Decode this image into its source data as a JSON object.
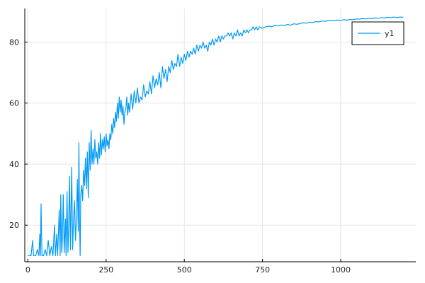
{
  "chart_data": {
    "type": "line",
    "title": "",
    "xlabel": "",
    "ylabel": "",
    "xlim": [
      -10,
      1240
    ],
    "ylim": [
      8,
      91
    ],
    "xticks": [
      0,
      250,
      500,
      750,
      1000
    ],
    "yticks": [
      20,
      40,
      60,
      80
    ],
    "grid": true,
    "legend_position": "top-right",
    "series": [
      {
        "name": "y1",
        "color": "#009af9",
        "points": [
          [
            0,
            10
          ],
          [
            10,
            10
          ],
          [
            15,
            15
          ],
          [
            18,
            10
          ],
          [
            25,
            10
          ],
          [
            30,
            12
          ],
          [
            35,
            10
          ],
          [
            38,
            17
          ],
          [
            40,
            10
          ],
          [
            42,
            27
          ],
          [
            45,
            10
          ],
          [
            50,
            10
          ],
          [
            55,
            12
          ],
          [
            60,
            10
          ],
          [
            65,
            15
          ],
          [
            70,
            10
          ],
          [
            75,
            13
          ],
          [
            80,
            10
          ],
          [
            85,
            20
          ],
          [
            88,
            10
          ],
          [
            92,
            17
          ],
          [
            95,
            10
          ],
          [
            100,
            25
          ],
          [
            103,
            10
          ],
          [
            105,
            30
          ],
          [
            108,
            11
          ],
          [
            110,
            15
          ],
          [
            113,
            30
          ],
          [
            116,
            11
          ],
          [
            120,
            22
          ],
          [
            122,
            10
          ],
          [
            125,
            31
          ],
          [
            128,
            11
          ],
          [
            130,
            18
          ],
          [
            133,
            36
          ],
          [
            136,
            12
          ],
          [
            140,
            39
          ],
          [
            143,
            12
          ],
          [
            146,
            22
          ],
          [
            149,
            28
          ],
          [
            152,
            15
          ],
          [
            155,
            22
          ],
          [
            158,
            35
          ],
          [
            161,
            18
          ],
          [
            163,
            47
          ],
          [
            165,
            22
          ],
          [
            167,
            10
          ],
          [
            169,
            30
          ],
          [
            172,
            33
          ],
          [
            175,
            28
          ],
          [
            178,
            38
          ],
          [
            181,
            33
          ],
          [
            184,
            42
          ],
          [
            187,
            32
          ],
          [
            190,
            44
          ],
          [
            193,
            29
          ],
          [
            196,
            47
          ],
          [
            199,
            38
          ],
          [
            202,
            51
          ],
          [
            205,
            40
          ],
          [
            208,
            45
          ],
          [
            211,
            40
          ],
          [
            214,
            48
          ],
          [
            217,
            42
          ],
          [
            220,
            44
          ],
          [
            223,
            40
          ],
          [
            226,
            47
          ],
          [
            229,
            42
          ],
          [
            232,
            50
          ],
          [
            235,
            43
          ],
          [
            238,
            48
          ],
          [
            241,
            45
          ],
          [
            244,
            49
          ],
          [
            247,
            44
          ],
          [
            250,
            50
          ],
          [
            253,
            46
          ],
          [
            256,
            48
          ],
          [
            259,
            45
          ],
          [
            262,
            50
          ],
          [
            265,
            48
          ],
          [
            268,
            53
          ],
          [
            271,
            50
          ],
          [
            274,
            55
          ],
          [
            277,
            52
          ],
          [
            280,
            57
          ],
          [
            283,
            54
          ],
          [
            286,
            60
          ],
          [
            289,
            55
          ],
          [
            292,
            62
          ],
          [
            295,
            57
          ],
          [
            298,
            61
          ],
          [
            301,
            56
          ],
          [
            304,
            59
          ],
          [
            307,
            53
          ],
          [
            310,
            57
          ],
          [
            313,
            58
          ],
          [
            316,
            62
          ],
          [
            319,
            56
          ],
          [
            322,
            60
          ],
          [
            325,
            57
          ],
          [
            330,
            63
          ],
          [
            335,
            58
          ],
          [
            340,
            64
          ],
          [
            345,
            60
          ],
          [
            350,
            65
          ],
          [
            355,
            60
          ],
          [
            360,
            62
          ],
          [
            365,
            61
          ],
          [
            370,
            66
          ],
          [
            375,
            62
          ],
          [
            380,
            64
          ],
          [
            385,
            63
          ],
          [
            390,
            67
          ],
          [
            395,
            63
          ],
          [
            400,
            69
          ],
          [
            405,
            65
          ],
          [
            410,
            68
          ],
          [
            415,
            66
          ],
          [
            420,
            70
          ],
          [
            425,
            65
          ],
          [
            430,
            72
          ],
          [
            435,
            68
          ],
          [
            440,
            71
          ],
          [
            445,
            67
          ],
          [
            450,
            72
          ],
          [
            455,
            70
          ],
          [
            460,
            74
          ],
          [
            465,
            71
          ],
          [
            470,
            73
          ],
          [
            475,
            72
          ],
          [
            480,
            76
          ],
          [
            485,
            72
          ],
          [
            490,
            75
          ],
          [
            495,
            73
          ],
          [
            500,
            76
          ],
          [
            505,
            74
          ],
          [
            510,
            77
          ],
          [
            515,
            75
          ],
          [
            520,
            77
          ],
          [
            525,
            76
          ],
          [
            530,
            78
          ],
          [
            535,
            76
          ],
          [
            540,
            79
          ],
          [
            545,
            77
          ],
          [
            550,
            79
          ],
          [
            555,
            78
          ],
          [
            560,
            80
          ],
          [
            565,
            78
          ],
          [
            570,
            79
          ],
          [
            575,
            77
          ],
          [
            580,
            80
          ],
          [
            585,
            79
          ],
          [
            590,
            81
          ],
          [
            595,
            79
          ],
          [
            600,
            81
          ],
          [
            605,
            80
          ],
          [
            610,
            82
          ],
          [
            615,
            80
          ],
          [
            620,
            82
          ],
          [
            625,
            81
          ],
          [
            630,
            82
          ],
          [
            635,
            82
          ],
          [
            640,
            83
          ],
          [
            645,
            82
          ],
          [
            650,
            83
          ],
          [
            655,
            81
          ],
          [
            660,
            83
          ],
          [
            665,
            82
          ],
          [
            670,
            84
          ],
          [
            675,
            82
          ],
          [
            680,
            83
          ],
          [
            685,
            82
          ],
          [
            690,
            84
          ],
          [
            695,
            83
          ],
          [
            700,
            84
          ],
          [
            705,
            83
          ],
          [
            710,
            84
          ],
          [
            715,
            84
          ],
          [
            720,
            85
          ],
          [
            725,
            84
          ],
          [
            730,
            85
          ],
          [
            735,
            84
          ],
          [
            740,
            85
          ],
          [
            750,
            84.5
          ],
          [
            760,
            85
          ],
          [
            770,
            85.2
          ],
          [
            780,
            85
          ],
          [
            790,
            85.5
          ],
          [
            800,
            85.3
          ],
          [
            810,
            85.6
          ],
          [
            820,
            85.4
          ],
          [
            830,
            85.8
          ],
          [
            840,
            85.5
          ],
          [
            850,
            86
          ],
          [
            860,
            85.8
          ],
          [
            870,
            86.1
          ],
          [
            880,
            86.3
          ],
          [
            890,
            86.2
          ],
          [
            900,
            86.5
          ],
          [
            910,
            86.4
          ],
          [
            920,
            86.7
          ],
          [
            930,
            86.6
          ],
          [
            940,
            86.9
          ],
          [
            950,
            86.8
          ],
          [
            960,
            87
          ],
          [
            970,
            87.1
          ],
          [
            980,
            87
          ],
          [
            990,
            87.2
          ],
          [
            1000,
            87.1
          ],
          [
            1010,
            87.3
          ],
          [
            1020,
            87.2
          ],
          [
            1030,
            87.4
          ],
          [
            1040,
            87.3
          ],
          [
            1050,
            87.6
          ],
          [
            1060,
            87.5
          ],
          [
            1070,
            87.7
          ],
          [
            1080,
            87.6
          ],
          [
            1090,
            87.8
          ],
          [
            1100,
            87.7
          ],
          [
            1110,
            87.9
          ],
          [
            1120,
            87.8
          ],
          [
            1130,
            88
          ],
          [
            1140,
            87.9
          ],
          [
            1150,
            88.1
          ],
          [
            1160,
            88
          ],
          [
            1170,
            88.2
          ],
          [
            1180,
            88
          ],
          [
            1190,
            88.2
          ],
          [
            1200,
            88.1
          ]
        ]
      }
    ]
  }
}
